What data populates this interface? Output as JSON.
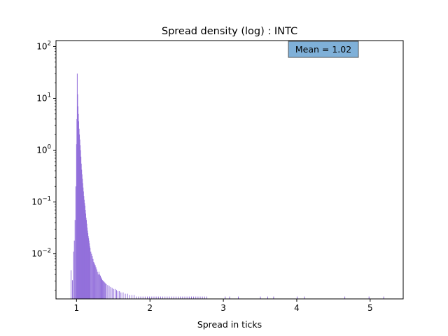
{
  "chart_data": {
    "type": "bar",
    "title": "Spread density (log) : INTC",
    "xlabel": "Spread in ticks",
    "ylabel": "",
    "yscale": "log",
    "xlim": [
      0.72,
      5.45
    ],
    "ylim": [
      0.00135,
      130
    ],
    "xticks": [
      1,
      2,
      3,
      4,
      5
    ],
    "xtick_labels": [
      "1",
      "2",
      "3",
      "4",
      "5"
    ],
    "yticks": [
      0.01,
      0.1,
      1,
      10,
      100
    ],
    "ytick_mantissa": "10",
    "ytick_exponents": [
      "−2",
      "−1",
      "0",
      "1",
      "2"
    ],
    "grid": false,
    "bar_color": "#9370db",
    "annotation": {
      "text": "Mean = 1.02",
      "background": "#7fb0d8",
      "placement": "top-right"
    },
    "bin_width": 0.005,
    "bins": [
      [
        0.92,
        0.0048
      ],
      [
        0.94,
        0.0031
      ],
      [
        0.955,
        0.011
      ],
      [
        0.965,
        0.018
      ],
      [
        0.975,
        0.045
      ],
      [
        0.985,
        0.2
      ],
      [
        0.995,
        1.3
      ],
      [
        1.0,
        4.0
      ],
      [
        1.005,
        30.0
      ],
      [
        1.01,
        12.0
      ],
      [
        1.015,
        7.0
      ],
      [
        1.02,
        5.0
      ],
      [
        1.025,
        3.6
      ],
      [
        1.03,
        2.6
      ],
      [
        1.035,
        2.0
      ],
      [
        1.04,
        1.6
      ],
      [
        1.045,
        1.25
      ],
      [
        1.05,
        1.0
      ],
      [
        1.055,
        0.75
      ],
      [
        1.06,
        0.55
      ],
      [
        1.065,
        0.42
      ],
      [
        1.07,
        0.34
      ],
      [
        1.075,
        0.28
      ],
      [
        1.08,
        0.23
      ],
      [
        1.085,
        0.19
      ],
      [
        1.09,
        0.16
      ],
      [
        1.095,
        0.13
      ],
      [
        1.1,
        0.11
      ],
      [
        1.105,
        0.095
      ],
      [
        1.11,
        0.085
      ],
      [
        1.115,
        0.07
      ],
      [
        1.12,
        0.06
      ],
      [
        1.125,
        0.05
      ],
      [
        1.13,
        0.045
      ],
      [
        1.135,
        0.038
      ],
      [
        1.14,
        0.032
      ],
      [
        1.145,
        0.028
      ],
      [
        1.15,
        0.025
      ],
      [
        1.155,
        0.022
      ],
      [
        1.16,
        0.02
      ],
      [
        1.165,
        0.018
      ],
      [
        1.17,
        0.016
      ],
      [
        1.175,
        0.014
      ],
      [
        1.18,
        0.013
      ],
      [
        1.19,
        0.011
      ],
      [
        1.2,
        0.01
      ],
      [
        1.21,
        0.009
      ],
      [
        1.22,
        0.008
      ],
      [
        1.23,
        0.007
      ],
      [
        1.24,
        0.0065
      ],
      [
        1.25,
        0.006
      ],
      [
        1.26,
        0.0055
      ],
      [
        1.27,
        0.005
      ],
      [
        1.28,
        0.0045
      ],
      [
        1.29,
        0.004
      ],
      [
        1.3,
        0.0045
      ],
      [
        1.31,
        0.004
      ],
      [
        1.32,
        0.0038
      ],
      [
        1.33,
        0.0035
      ],
      [
        1.34,
        0.0033
      ],
      [
        1.35,
        0.0031
      ],
      [
        1.36,
        0.003
      ],
      [
        1.37,
        0.0029
      ],
      [
        1.38,
        0.0028
      ],
      [
        1.39,
        0.0027
      ],
      [
        1.4,
        0.0026
      ],
      [
        1.42,
        0.0025
      ],
      [
        1.44,
        0.0024
      ],
      [
        1.46,
        0.0023
      ],
      [
        1.48,
        0.0022
      ],
      [
        1.5,
        0.0021
      ],
      [
        1.52,
        0.0021
      ],
      [
        1.54,
        0.002
      ],
      [
        1.56,
        0.0019
      ],
      [
        1.58,
        0.0019
      ],
      [
        1.6,
        0.0018
      ],
      [
        1.63,
        0.0018
      ],
      [
        1.66,
        0.0017
      ],
      [
        1.69,
        0.0017
      ],
      [
        1.72,
        0.0016
      ],
      [
        1.75,
        0.0016
      ],
      [
        1.78,
        0.0016
      ],
      [
        1.81,
        0.0015
      ],
      [
        1.84,
        0.0015
      ],
      [
        1.87,
        0.0015
      ],
      [
        1.9,
        0.0015
      ],
      [
        1.93,
        0.0015
      ],
      [
        1.96,
        0.0015
      ],
      [
        1.99,
        0.0015
      ],
      [
        2.02,
        0.0015
      ],
      [
        2.05,
        0.0015
      ],
      [
        2.08,
        0.0015
      ],
      [
        2.11,
        0.0015
      ],
      [
        2.14,
        0.0015
      ],
      [
        2.17,
        0.0015
      ],
      [
        2.2,
        0.0015
      ],
      [
        2.23,
        0.0015
      ],
      [
        2.26,
        0.0015
      ],
      [
        2.29,
        0.0015
      ],
      [
        2.32,
        0.0015
      ],
      [
        2.35,
        0.0015
      ],
      [
        2.38,
        0.0015
      ],
      [
        2.41,
        0.0015
      ],
      [
        2.44,
        0.0015
      ],
      [
        2.47,
        0.0015
      ],
      [
        2.5,
        0.0015
      ],
      [
        2.53,
        0.0015
      ],
      [
        2.56,
        0.0015
      ],
      [
        2.59,
        0.0015
      ],
      [
        2.62,
        0.0015
      ],
      [
        2.65,
        0.0015
      ],
      [
        2.68,
        0.0015
      ],
      [
        2.71,
        0.0015
      ],
      [
        2.74,
        0.0015
      ],
      [
        2.77,
        0.0015
      ],
      [
        3.02,
        0.0015
      ],
      [
        3.08,
        0.0015
      ],
      [
        3.2,
        0.0015
      ],
      [
        3.5,
        0.0015
      ],
      [
        3.6,
        0.0015
      ],
      [
        3.68,
        0.0015
      ],
      [
        4.0,
        0.0015
      ],
      [
        4.1,
        0.0015
      ],
      [
        4.65,
        0.0015
      ],
      [
        4.98,
        0.0015
      ],
      [
        5.18,
        0.0015
      ]
    ]
  }
}
